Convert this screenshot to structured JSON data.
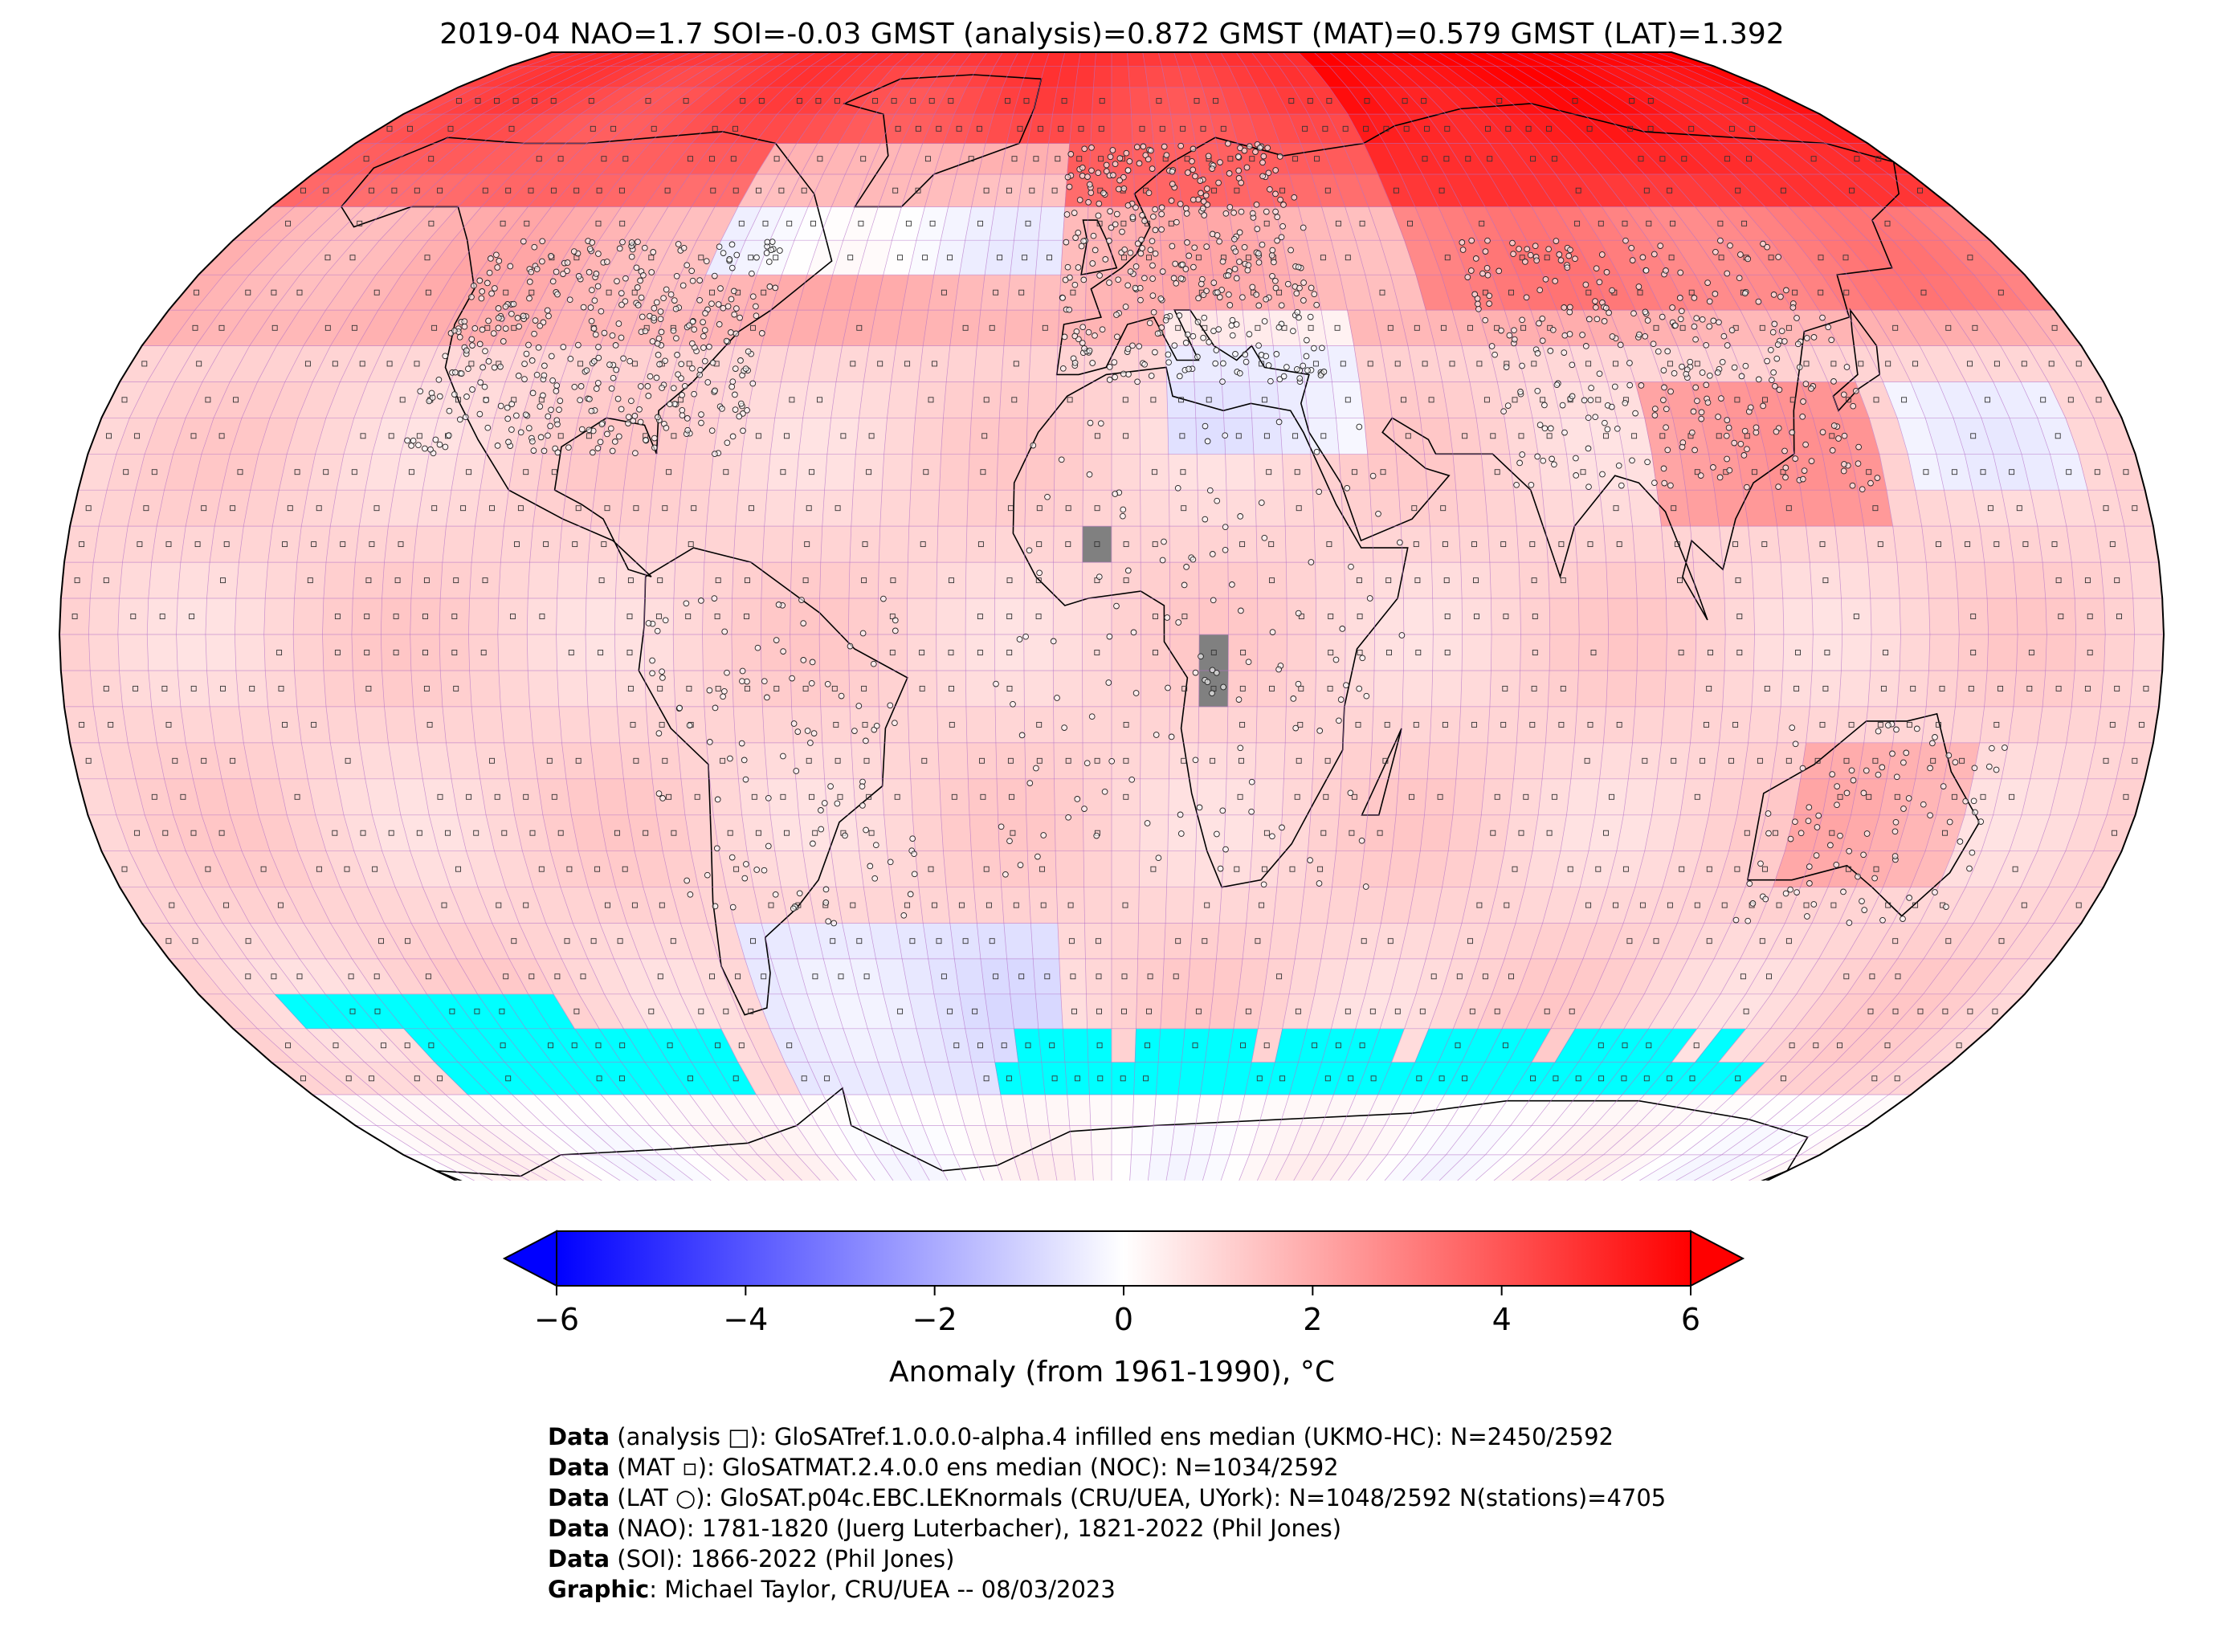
{
  "title": "2019-04 NAO=1.7 SOI=-0.03 GMST (analysis)=0.872 GMST (MAT)=0.579 GMST (LAT)=1.392",
  "colorbar": {
    "label": "Anomaly (from 1961-1990), °C",
    "min": -6,
    "max": 6,
    "ticks": [
      "−6",
      "−4",
      "−2",
      "0",
      "2",
      "4",
      "6"
    ],
    "tick_values": [
      -6,
      -4,
      -2,
      0,
      2,
      4,
      6
    ],
    "colors": {
      "low": "#0000ff",
      "mid": "#ffffff",
      "high": "#ff0000"
    },
    "extend": "both"
  },
  "map": {
    "projection": "Robinson",
    "grid": "5° x 5°",
    "colors": {
      "sea_ice": "#00ffff",
      "missing": "#808080",
      "gridline": "#b470c8",
      "coast": "#000000"
    }
  },
  "credits": [
    {
      "bold": "Data",
      "text": " (analysis □): GloSATref.1.0.0.0-alpha.4 infilled ens median (UKMO-HC): N=2450/2592"
    },
    {
      "bold": "Data",
      "text": " (MAT ▫): GloSATMAT.2.4.0.0 ens median (NOC): N=1034/2592"
    },
    {
      "bold": "Data",
      "text": " (LAT ○): GloSAT.p04c.EBC.LEKnormals (CRU/UEA, UYork): N=1048/2592 N(stations)=4705"
    },
    {
      "bold": "Data",
      "text": " (NAO): 1781-1820 (Juerg Luterbacher), 1821-2022 (Phil Jones)"
    },
    {
      "bold": "Data",
      "text": " (SOI): 1866-2022 (Phil Jones)"
    },
    {
      "bold": "Graphic",
      "text": ": Michael Taylor, CRU/UEA -- 08/03/2023"
    }
  ]
}
